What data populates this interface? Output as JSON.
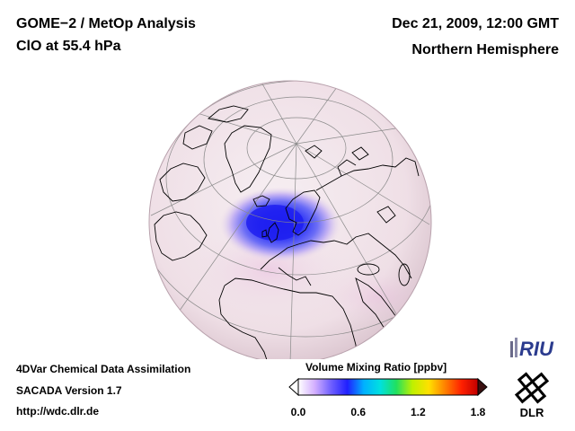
{
  "header": {
    "title": "GOME−2 / MetOp Analysis",
    "species": "ClO at 55.4 hPa",
    "datetime": "Dec 21, 2009, 12:00 GMT",
    "region": "Northern Hemisphere"
  },
  "footer": {
    "line1": "4DVar Chemical Data Assimilation",
    "line2": "SACADA Version 1.7",
    "url": "http://wdc.dlr.de"
  },
  "colorbar": {
    "title": "Volume Mixing Ratio [ppbv]",
    "min": 0.0,
    "max": 1.8,
    "ticks": [
      "0.0",
      "0.6",
      "1.2",
      "1.8"
    ],
    "colors": [
      "#ffffff",
      "#d4b0ff",
      "#7060ff",
      "#2020ff",
      "#00b0ff",
      "#00e0e0",
      "#20e060",
      "#c0f000",
      "#ffe000",
      "#ff8000",
      "#ff2000",
      "#c00000"
    ]
  },
  "logos": {
    "riu": "RIU",
    "dlr": "DLR"
  },
  "map": {
    "projection": "orthographic",
    "feature": "ClO maximum over Scandinavia / North Sea",
    "peak_value_ppbv": 0.4
  }
}
